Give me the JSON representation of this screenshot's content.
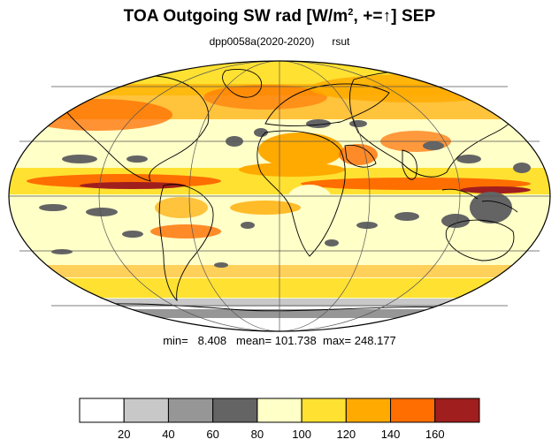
{
  "header": {
    "title_prefix": "TOA Outgoing SW rad [W/m",
    "title_sup": "2",
    "title_suffix": ", +=↑] SEP",
    "experiment": "dpp0058a(2020-2020)",
    "variable": "rsut"
  },
  "stats": {
    "min_label": "min=",
    "min_value": "8.408",
    "mean_label": "mean=",
    "mean_value": "101.738",
    "max_label": "max=",
    "max_value": "248.177"
  },
  "colorbar": {
    "colors": [
      "#ffffff",
      "#c8c8c8",
      "#969696",
      "#646464",
      "#ffffc8",
      "#ffe132",
      "#ffaa00",
      "#ff6e00",
      "#a01e1e"
    ],
    "tick_labels": [
      "20",
      "40",
      "60",
      "80",
      "100",
      "120",
      "140",
      "160"
    ],
    "border_color": "#000000"
  },
  "map": {
    "projection": "Mollweide",
    "ocean_background": "#ffffc8",
    "coast_color": "#000000",
    "grid_color": "#555555"
  }
}
